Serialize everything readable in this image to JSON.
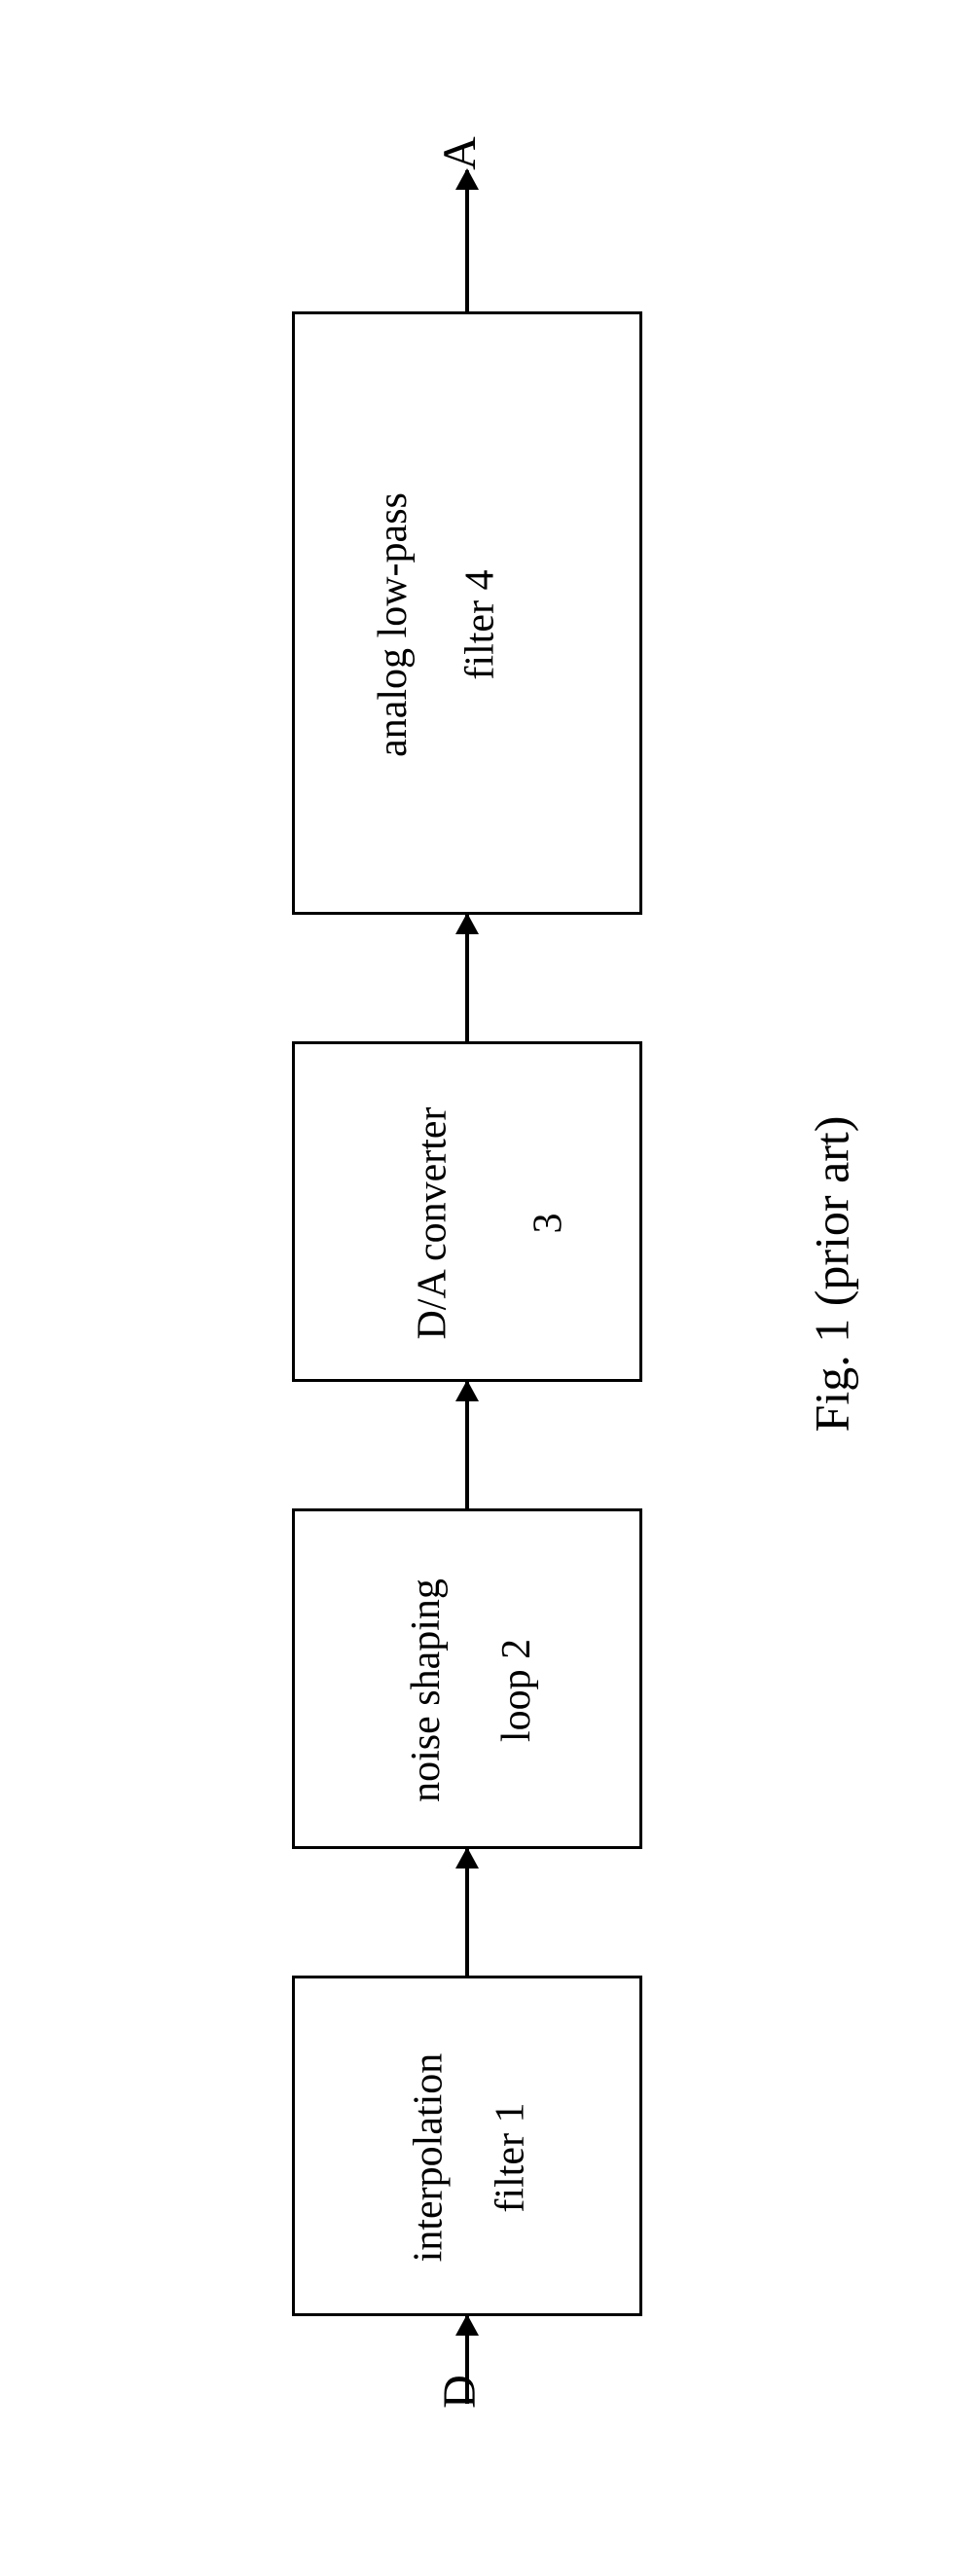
{
  "diagram": {
    "type": "flowchart",
    "orientation": "vertical-rotated",
    "input_signal": "D",
    "output_signal": "A",
    "caption": "Fig. 1 (prior art)",
    "background_color": "#ffffff",
    "stroke_color": "#000000",
    "stroke_width": 3,
    "font_family": "Times New Roman",
    "label_fontsize": 48,
    "block_fontsize": 42,
    "caption_fontsize": 50,
    "blocks": [
      {
        "id": 1,
        "line1": "interpolation",
        "line2": "filter   1"
      },
      {
        "id": 2,
        "line1": "noise shaping",
        "line2": "loop   2"
      },
      {
        "id": 3,
        "line1": "D/A converter",
        "line2": "3"
      },
      {
        "id": 4,
        "line1": "analog low-pass",
        "line2": "filter   4"
      }
    ],
    "arrows": [
      {
        "from": "input",
        "to": "block1"
      },
      {
        "from": "block1",
        "to": "block2"
      },
      {
        "from": "block2",
        "to": "block3"
      },
      {
        "from": "block3",
        "to": "block4"
      },
      {
        "from": "block4",
        "to": "output"
      }
    ]
  }
}
